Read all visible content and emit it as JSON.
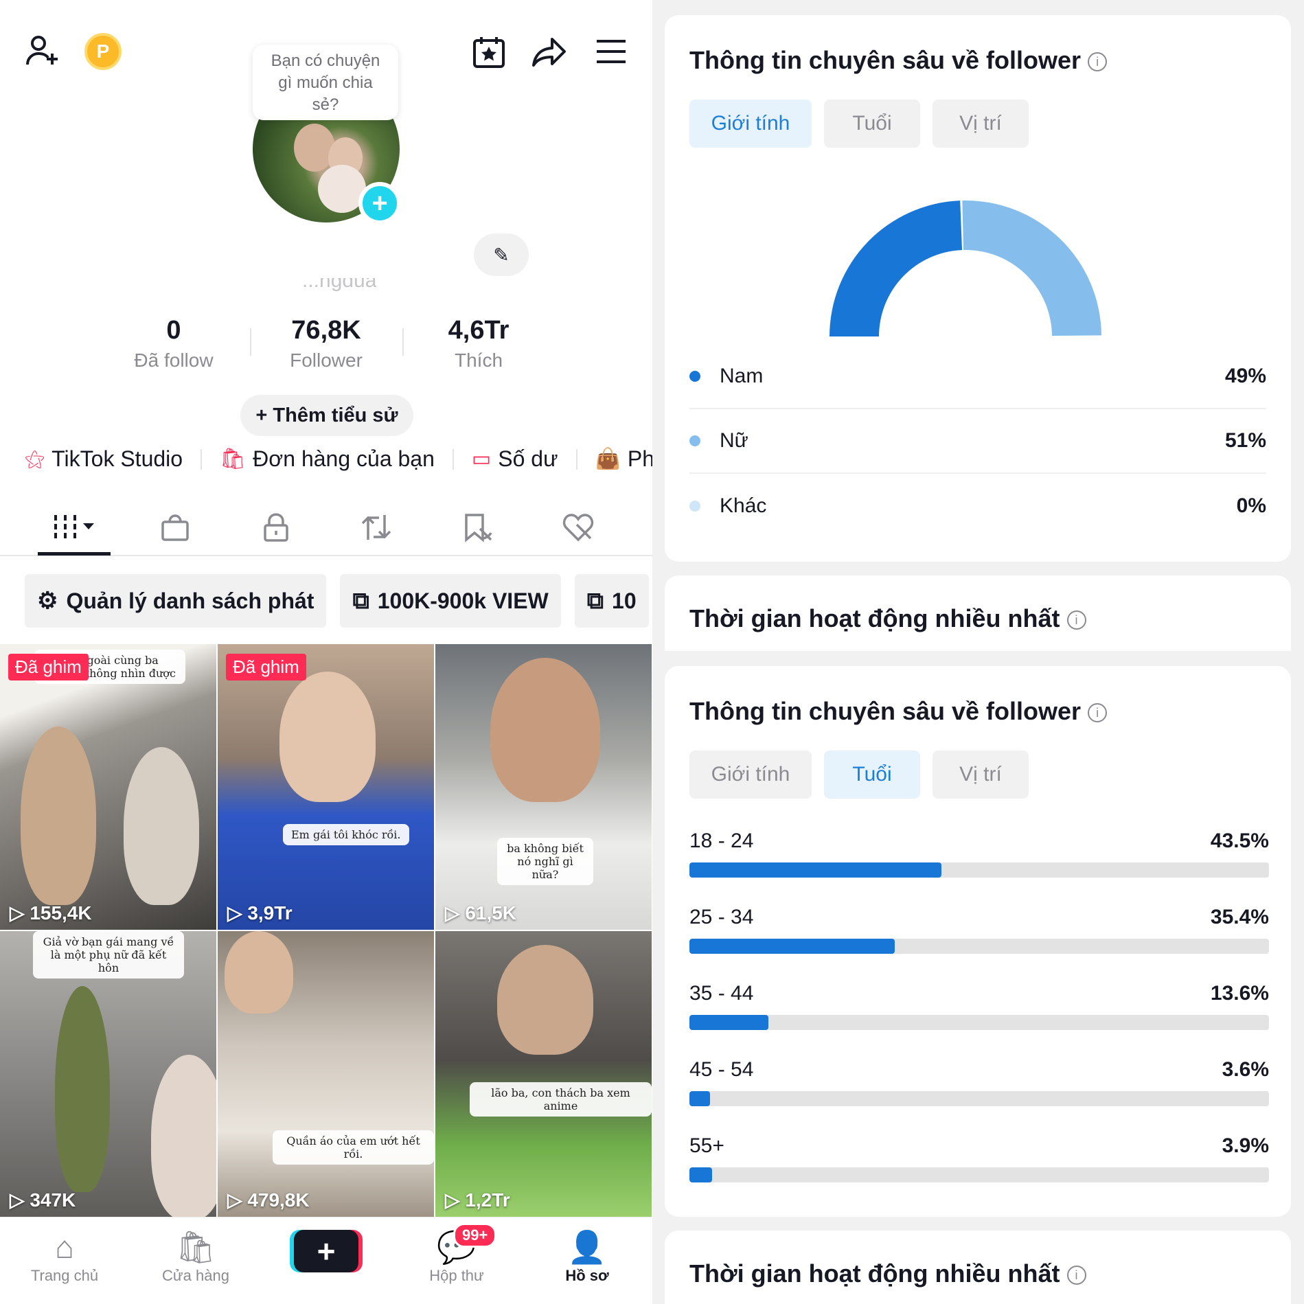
{
  "top_bubble": {
    "line1": "Bạn có chuyện",
    "line2": "gì muốn chia",
    "line3": "sẻ?"
  },
  "coin_label": "P",
  "username_partial": "...ngdua",
  "stats": [
    {
      "value": "0",
      "label": "Đã follow"
    },
    {
      "value": "76,8K",
      "label": "Follower"
    },
    {
      "value": "4,6Tr",
      "label": "Thích"
    }
  ],
  "bio_button": "+ Thêm tiểu sử",
  "quick_links": [
    {
      "label": "TikTok Studio",
      "icon": "person-star-icon"
    },
    {
      "label": "Đơn hàng của bạn",
      "icon": "order-bag-icon"
    },
    {
      "label": "Số dư",
      "icon": "wallet-icon"
    },
    {
      "label": "Phần",
      "icon": "shopping-bag-icon"
    }
  ],
  "chips": [
    {
      "label": "Quản lý danh sách phát",
      "icon": "gear-icon"
    },
    {
      "label": "100K-900k VIEW",
      "icon": "playlist-icon"
    },
    {
      "label": "10",
      "icon": "playlist-icon"
    }
  ],
  "videos": [
    {
      "views": "155,4K",
      "pinned": "Đã ghim",
      "caption": "Ra ngoài cùng ba\nGiả vờ không nhìn được"
    },
    {
      "views": "3,9Tr",
      "pinned": "Đã ghim",
      "caption": "Em gái tôi khóc rồi."
    },
    {
      "views": "61,5K",
      "pinned": "",
      "caption": "ba không biết nó nghĩ gì nữa?"
    },
    {
      "views": "347K",
      "pinned": "",
      "caption": "Giả vờ bạn gái mang về là một phụ nữ đã kết hôn"
    },
    {
      "views": "479,8K",
      "pinned": "",
      "caption": "Quần áo của em ướt hết rồi."
    },
    {
      "views": "1,2Tr",
      "pinned": "",
      "caption": "lão ba, con thách ba xem anime"
    }
  ],
  "bottom_nav": {
    "home": "Trang chủ",
    "shop": "Cửa hàng",
    "create": "+",
    "inbox": "Hộp thư",
    "inbox_badge": "99+",
    "profile": "Hồ sơ"
  },
  "insights_card_1": {
    "title": "Thông tin chuyên sâu về follower",
    "tabs": [
      "Giới tính",
      "Tuổi",
      "Vị trí"
    ],
    "active_tab": "Giới tính",
    "chart_data": {
      "type": "pie",
      "categories": [
        "Nam",
        "Nữ",
        "Khác"
      ],
      "values": [
        49,
        51,
        0
      ],
      "unit": "%",
      "colors": [
        "#1876d7",
        "#85bdec",
        "#cfe6f8"
      ]
    },
    "legend": [
      {
        "name": "Nam",
        "value": "49%",
        "color": "#1876d7"
      },
      {
        "name": "Nữ",
        "value": "51%",
        "color": "#85bdec"
      },
      {
        "name": "Khác",
        "value": "0%",
        "color": "#cfe6f8"
      }
    ]
  },
  "active_time_title_1": "Thời gian hoạt động nhiều nhất",
  "insights_card_2": {
    "title": "Thông tin chuyên sâu về follower",
    "tabs": [
      "Giới tính",
      "Tuổi",
      "Vị trí"
    ],
    "active_tab": "Tuổi",
    "chart_data": {
      "type": "bar",
      "categories": [
        "18 - 24",
        "25 - 34",
        "35 - 44",
        "45 - 54",
        "55+"
      ],
      "values": [
        43.5,
        35.4,
        13.6,
        3.6,
        3.9
      ],
      "labels": [
        "43.5%",
        "35.4%",
        "13.6%",
        "3.6%",
        "3.9%"
      ],
      "ylim": [
        0,
        100
      ],
      "unit": "%",
      "color": "#1876d7"
    }
  },
  "active_time_title_2": "Thời gian hoạt động nhiều nhất",
  "colors": {
    "accent_red": "#fe2c55",
    "accent_cyan": "#20d5ec",
    "chart_blue": "#1876d7"
  }
}
